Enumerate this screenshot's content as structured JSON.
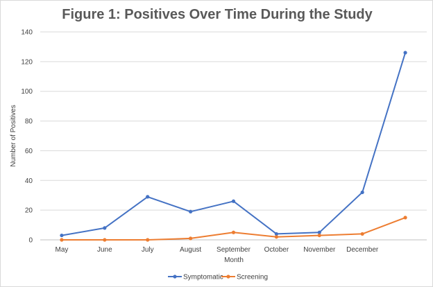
{
  "chart_data": {
    "type": "line",
    "title": "Figure 1: Positives Over Time During the Study",
    "xlabel": "Month",
    "ylabel": "Number of Positives",
    "categories": [
      "May",
      "June",
      "July",
      "August",
      "September",
      "October",
      "November",
      "December",
      ""
    ],
    "ylim": [
      0,
      140
    ],
    "yticks": [
      0,
      20,
      40,
      60,
      80,
      100,
      120,
      140
    ],
    "grid": true,
    "legend_position": "bottom",
    "series": [
      {
        "name": "Symptomatic",
        "color": "#4472c4",
        "values": [
          3,
          8,
          29,
          19,
          26,
          4,
          5,
          32,
          126
        ]
      },
      {
        "name": "Screening",
        "color": "#ed7d31",
        "values": [
          0,
          0,
          0,
          1,
          5,
          2,
          3,
          4,
          15
        ]
      }
    ]
  }
}
